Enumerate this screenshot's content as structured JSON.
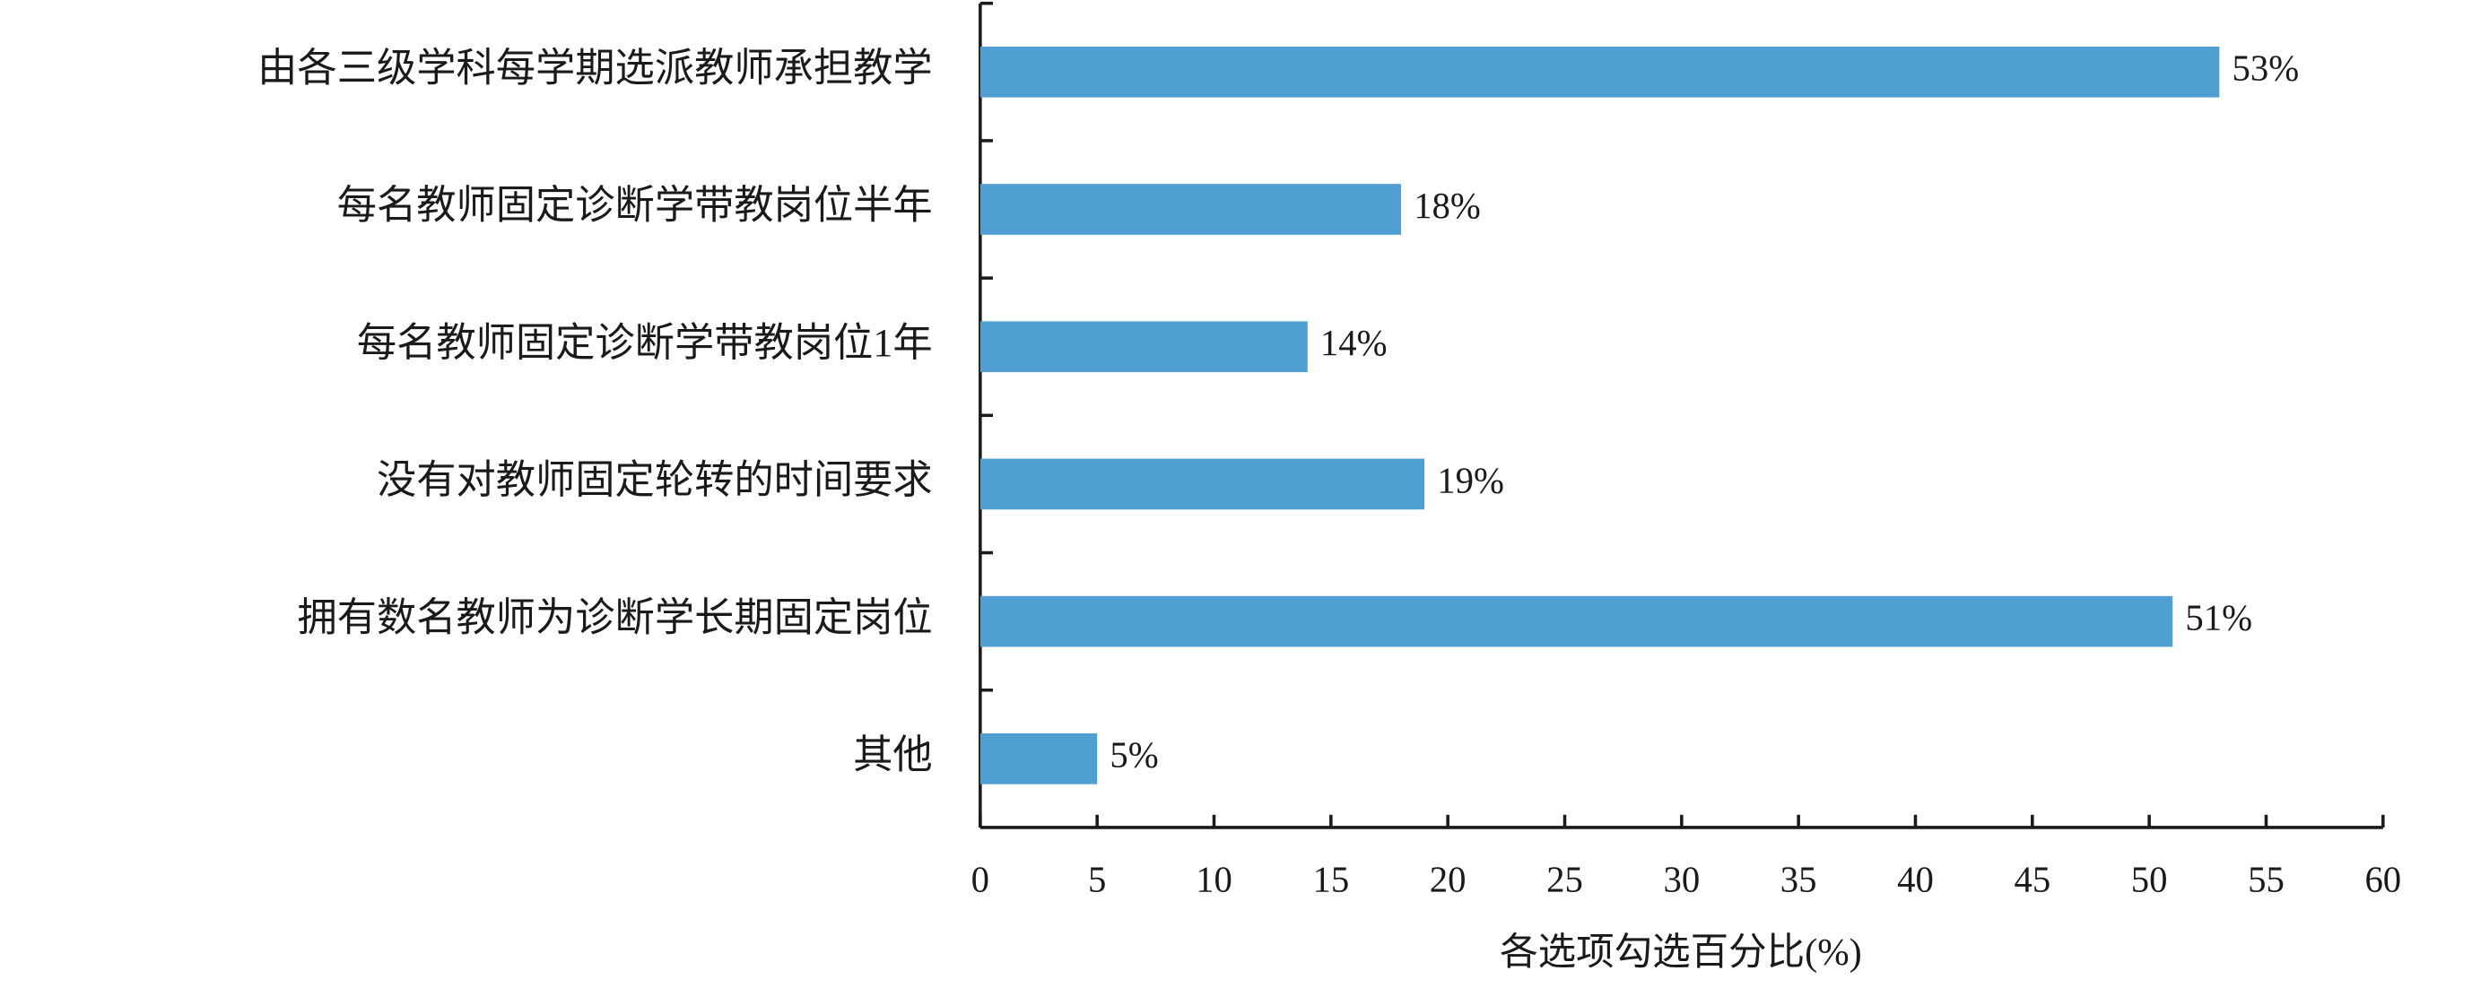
{
  "chart_data": {
    "type": "bar",
    "orientation": "horizontal",
    "categories": [
      "由各三级学科每学期选派教师承担教学",
      "每名教师固定诊断学带教岗位半年",
      "每名教师固定诊断学带教岗位1年",
      "没有对教师固定轮转的时间要求",
      "拥有数名教师为诊断学长期固定岗位",
      "其他"
    ],
    "values": [
      53,
      18,
      14,
      19,
      51,
      5
    ],
    "value_labels": [
      "53%",
      "18%",
      "14%",
      "19%",
      "51%",
      "5%"
    ],
    "color": "#4f9fd3",
    "xlabel": "各选项勾选百分比(%)",
    "xlim": [
      0,
      60
    ],
    "xticks": [
      0,
      5,
      10,
      15,
      20,
      25,
      30,
      35,
      40,
      45,
      50,
      55,
      60
    ]
  }
}
